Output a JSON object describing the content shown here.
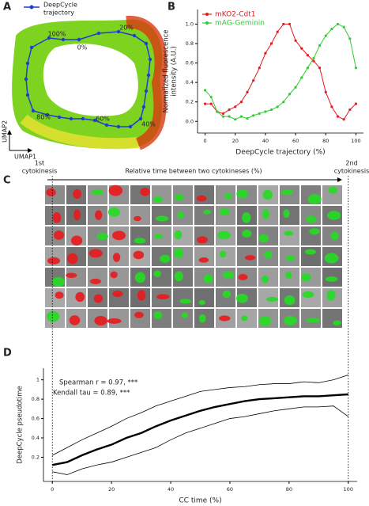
{
  "panel_letters": [
    "A",
    "B",
    "C",
    "D"
  ],
  "panel_a": {
    "legend": [
      "DeepCycle",
      "trajectory"
    ],
    "x_label": "UMAP1",
    "y_label": "UMAP2",
    "point_labels": [
      "100%",
      "0%",
      "20%",
      "40%",
      "60%",
      "80%"
    ]
  },
  "panel_c": {
    "start_label": [
      "1st",
      "cytokinesis"
    ],
    "end_label": [
      "2nd",
      "cytokinesis"
    ],
    "arrow_label": "Relative time between two cytokineses (%)"
  },
  "chart_data": [
    {
      "type": "line",
      "xlabel": "DeepCycle trajectory (%)",
      "ylabel": [
        "Normalized fluorescence",
        "intensity (A.U.)"
      ],
      "legend": "upper left",
      "markers": true,
      "x": [
        0,
        4,
        8,
        12,
        16,
        20,
        24,
        28,
        32,
        36,
        40,
        44,
        48,
        52,
        56,
        60,
        64,
        68,
        72,
        76,
        80,
        84,
        88,
        92,
        96,
        100
      ],
      "xlim": [
        -5,
        105
      ],
      "ylim": [
        -0.12,
        1.15
      ],
      "xticks": [
        0,
        20,
        40,
        60,
        80,
        100
      ],
      "yticks": [
        {
          "value": 0,
          "label": "0.0"
        },
        {
          "value": 0.2,
          "label": "0.2"
        },
        {
          "value": 0.4,
          "label": "0.4"
        },
        {
          "value": 0.6,
          "label": "0.6"
        },
        {
          "value": 0.8,
          "label": "0.8"
        },
        {
          "value": 1,
          "label": "1.0"
        }
      ],
      "series": [
        {
          "name": "mKO2-Cdt1",
          "color": "#e8191c",
          "line_width": 1,
          "values": [
            0.18,
            0.18,
            0.1,
            0.08,
            0.12,
            0.15,
            0.2,
            0.3,
            0.42,
            0.55,
            0.7,
            0.8,
            0.92,
            1.0,
            1.0,
            0.83,
            0.75,
            0.68,
            0.62,
            0.55,
            0.3,
            0.15,
            0.05,
            0.02,
            0.12,
            0.18
          ]
        },
        {
          "name": "mAG-Geminin",
          "color": "#33cc33",
          "line_width": 1,
          "values": [
            0.32,
            0.25,
            0.1,
            0.05,
            0.05,
            0.02,
            0.05,
            0.03,
            0.06,
            0.08,
            0.1,
            0.12,
            0.15,
            0.2,
            0.28,
            0.35,
            0.45,
            0.55,
            0.65,
            0.78,
            0.88,
            0.95,
            1.0,
            0.97,
            0.85,
            0.55
          ]
        }
      ]
    },
    {
      "type": "line",
      "xlabel": "CC time (%)",
      "ylabel": [
        "DeepCycle pseudotime"
      ],
      "markers": false,
      "annotations": [
        "Spearman r = 0.97, ***",
        "Kendall tau = 0.89, ***"
      ],
      "x": [
        0,
        5,
        10,
        15,
        20,
        25,
        30,
        35,
        40,
        45,
        50,
        55,
        60,
        65,
        70,
        75,
        80,
        85,
        90,
        95,
        100
      ],
      "xlim": [
        -3,
        103
      ],
      "ylim": [
        -0.05,
        1.12
      ],
      "xticks": [
        0,
        20,
        40,
        60,
        80,
        100
      ],
      "yticks": [
        0.2,
        0.4,
        0.6,
        0.8,
        1.0
      ],
      "series": [
        {
          "color": "#000000",
          "line_width": 2.4,
          "values": [
            0.12,
            0.15,
            0.22,
            0.28,
            0.33,
            0.4,
            0.45,
            0.52,
            0.58,
            0.63,
            0.68,
            0.72,
            0.75,
            0.78,
            0.8,
            0.81,
            0.82,
            0.83,
            0.83,
            0.84,
            0.85
          ]
        },
        {
          "color": "#000000",
          "line_width": 0.8,
          "values": [
            0.22,
            0.3,
            0.38,
            0.45,
            0.52,
            0.6,
            0.66,
            0.73,
            0.78,
            0.83,
            0.88,
            0.9,
            0.92,
            0.93,
            0.95,
            0.96,
            0.96,
            0.98,
            0.97,
            1.0,
            1.05
          ]
        },
        {
          "color": "#000000",
          "line_width": 0.8,
          "values": [
            0.05,
            0.02,
            0.08,
            0.12,
            0.15,
            0.2,
            0.25,
            0.3,
            0.38,
            0.45,
            0.5,
            0.55,
            0.6,
            0.62,
            0.65,
            0.68,
            0.7,
            0.72,
            0.72,
            0.73,
            0.62
          ]
        }
      ]
    }
  ]
}
